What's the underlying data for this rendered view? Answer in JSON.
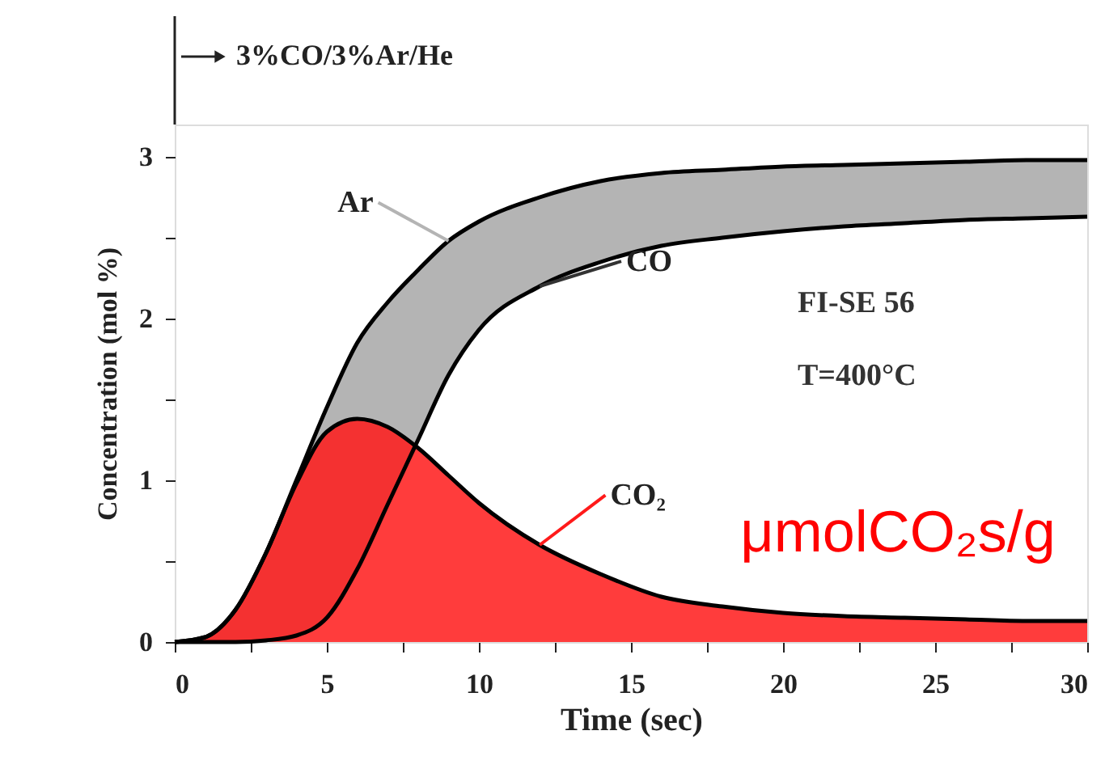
{
  "chart_data": {
    "type": "area",
    "xlabel": "Time (sec)",
    "ylabel": "Concentration (mol %)",
    "x": [
      0,
      1,
      2,
      3,
      4,
      5,
      6,
      7,
      8,
      9,
      10,
      12,
      14,
      16,
      18,
      20,
      22,
      24,
      26,
      28,
      30
    ],
    "series": [
      {
        "name": "Ar",
        "color": "#b4b4b4",
        "values": [
          0,
          0.03,
          0.2,
          0.55,
          1.0,
          1.45,
          1.85,
          2.1,
          2.3,
          2.48,
          2.6,
          2.75,
          2.85,
          2.9,
          2.92,
          2.94,
          2.95,
          2.96,
          2.97,
          2.98,
          2.98
        ]
      },
      {
        "name": "CO",
        "color": "#ffffff",
        "values": [
          0,
          0,
          0,
          0.01,
          0.04,
          0.15,
          0.45,
          0.85,
          1.25,
          1.65,
          1.93,
          2.2,
          2.35,
          2.45,
          2.5,
          2.54,
          2.57,
          2.59,
          2.61,
          2.62,
          2.63
        ]
      },
      {
        "name": "CO₂",
        "color": "#ff1a1a",
        "values": [
          0,
          0.03,
          0.2,
          0.55,
          0.98,
          1.3,
          1.38,
          1.33,
          1.2,
          1.03,
          0.86,
          0.6,
          0.42,
          0.28,
          0.22,
          0.18,
          0.16,
          0.15,
          0.14,
          0.13,
          0.13
        ]
      }
    ],
    "xlim": [
      0,
      30
    ],
    "ylim": [
      0,
      3.2
    ],
    "xticks": [
      0,
      {
        "value": 2.5,
        "label": null
      },
      5,
      {
        "value": 7.5,
        "label": null
      },
      10,
      {
        "value": 12.5,
        "label": null
      },
      15,
      {
        "value": 17.5,
        "label": null
      },
      20,
      {
        "value": 22.5,
        "label": null
      },
      25,
      {
        "value": 27.5,
        "label": null
      },
      30
    ],
    "yticks": [
      0,
      {
        "value": 0.5,
        "label": null
      },
      1,
      {
        "value": 1.5,
        "label": null
      },
      2,
      {
        "value": 2.5,
        "label": null
      },
      3
    ],
    "grid": false,
    "annotations": [
      "3%CO/3%Ar/He",
      "FI-SE 56",
      "T=400°C",
      "μmolCO₂s/g"
    ]
  }
}
